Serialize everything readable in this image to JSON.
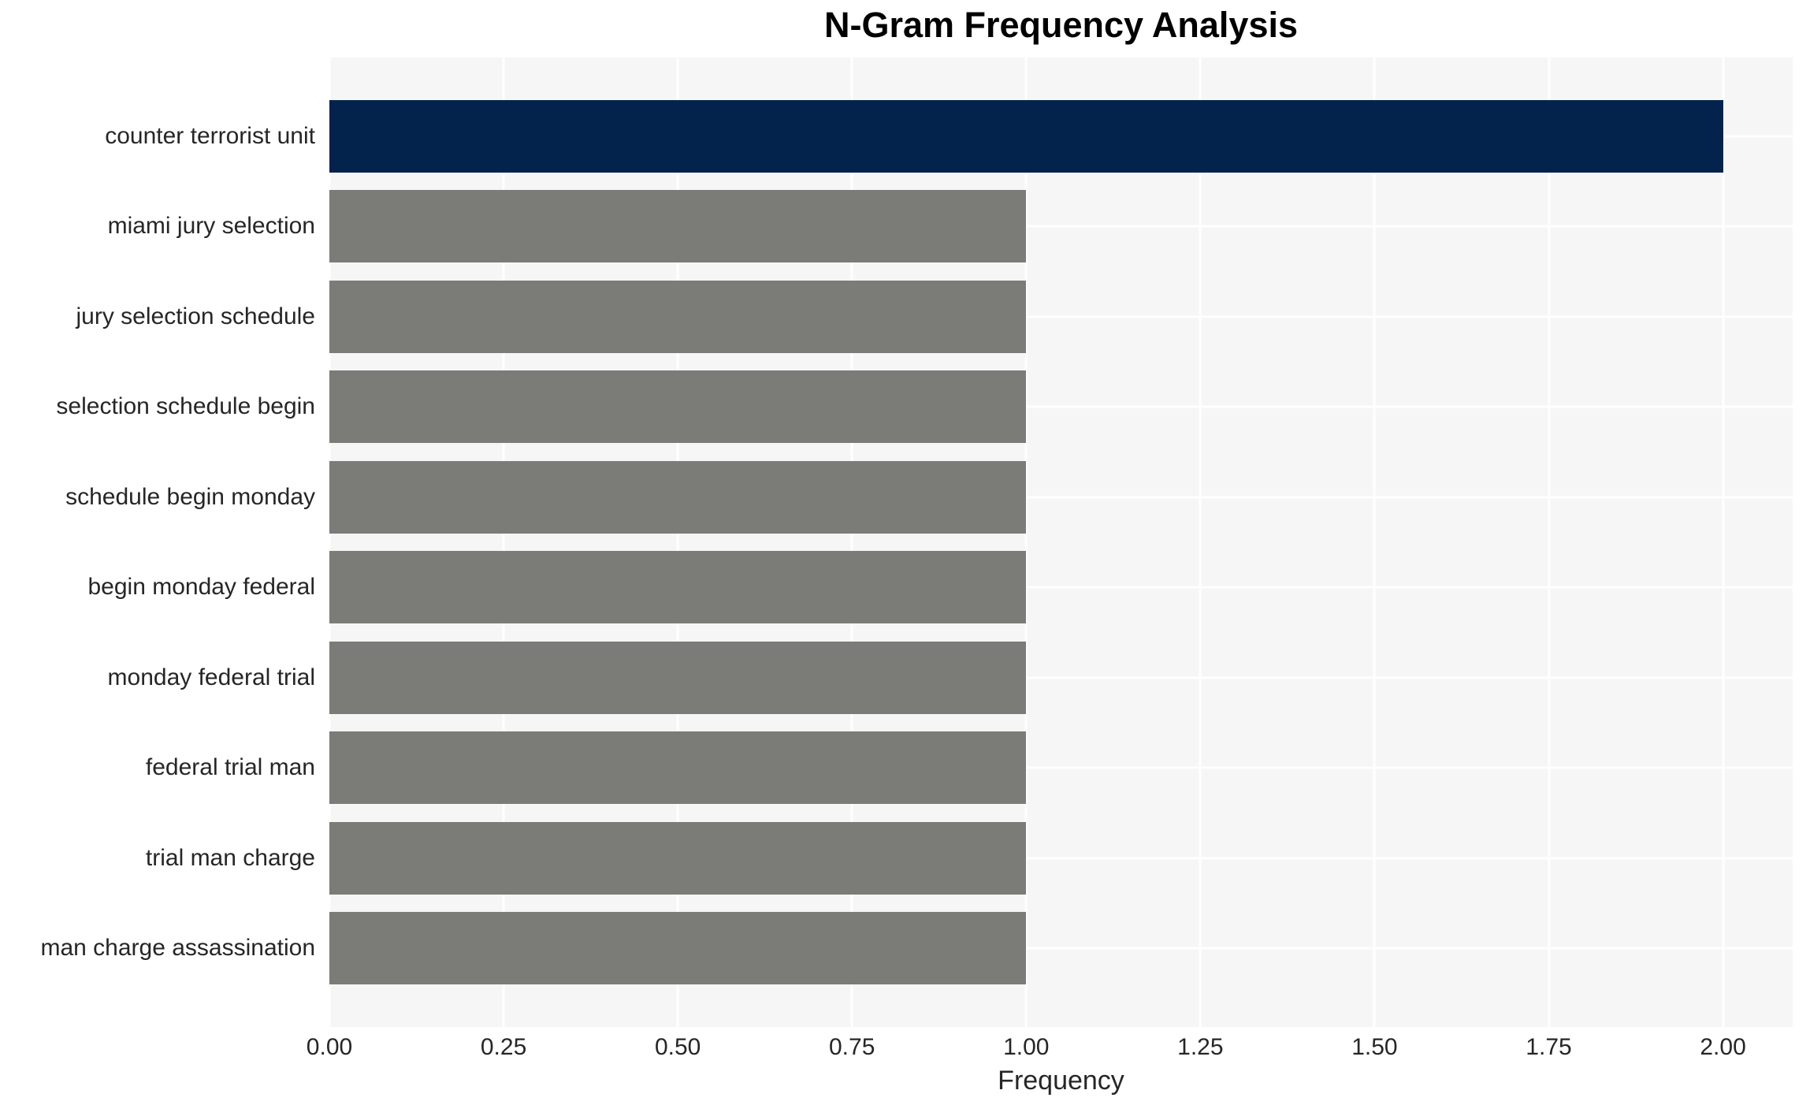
{
  "title": "N-Gram Frequency Analysis",
  "chart_data": {
    "type": "bar",
    "orientation": "horizontal",
    "title": "N-Gram Frequency Analysis",
    "categories": [
      "counter terrorist unit",
      "miami jury selection",
      "jury selection schedule",
      "selection schedule begin",
      "schedule begin monday",
      "begin monday federal",
      "monday federal trial",
      "federal trial man",
      "trial man charge",
      "man charge assassination"
    ],
    "values": [
      2,
      1,
      1,
      1,
      1,
      1,
      1,
      1,
      1,
      1
    ],
    "xlabel": "Frequency",
    "ylabel": "",
    "xlim": [
      0,
      2.1
    ],
    "xticks": [
      0,
      0.25,
      0.5,
      0.75,
      1.0,
      1.25,
      1.5,
      1.75,
      2.0
    ],
    "xtick_labels": [
      "0.00",
      "0.25",
      "0.50",
      "0.75",
      "1.00",
      "1.25",
      "1.50",
      "1.75",
      "2.00"
    ],
    "grid": true,
    "legend": false,
    "colors": {
      "highlight_bar": "#04234c",
      "default_bar": "#7b7b78",
      "plot_background": "#f6f6f6",
      "figure_background": "#ffffff",
      "grid_line": "#ffffff",
      "tick_text": "#262626",
      "title_text": "#000000"
    }
  }
}
